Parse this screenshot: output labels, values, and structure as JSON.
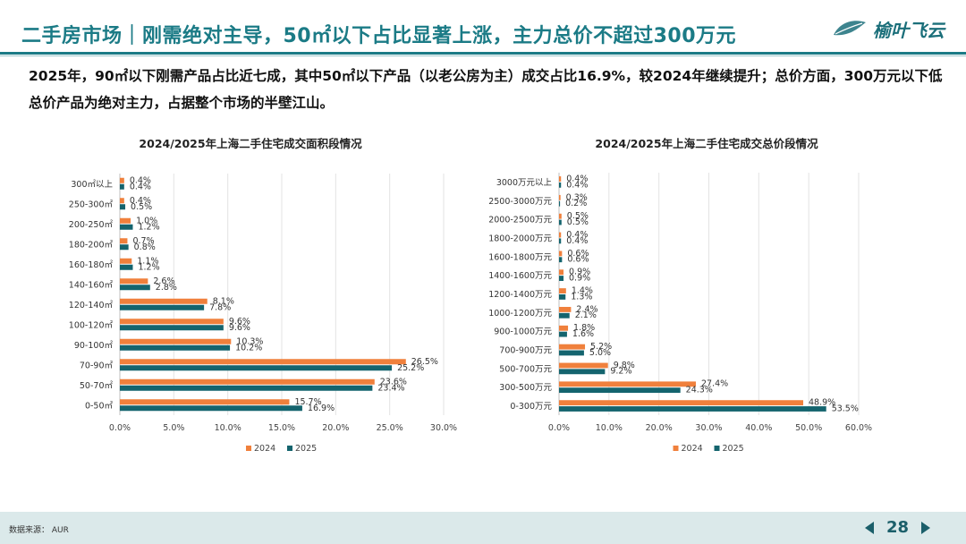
{
  "header": {
    "title": "二手房市场｜刚需绝对主导，50㎡以下占比显著上涨，主力总价不超过300万元",
    "logo_text": "榆叶飞云"
  },
  "subtitle": "2025年，90㎡以下刚需产品占比近七成，其中50㎡以下产品（以老公房为主）成交占比16.9%，较2024年继续提升；总价方面，300万元以下低总价产品为绝对主力，占据整个市场的半壁江山。",
  "colors": {
    "primary": "#1b7b86",
    "series_2024": "#f0803c",
    "series_2025": "#14646e"
  },
  "chart_data": [
    {
      "type": "bar",
      "orientation": "horizontal",
      "title": "2024/2025年上海二手住宅成交面积段情况",
      "categories": [
        "300㎡以上",
        "250-300㎡",
        "200-250㎡",
        "180-200㎡",
        "160-180㎡",
        "140-160㎡",
        "120-140㎡",
        "100-120㎡",
        "90-100㎡",
        "70-90㎡",
        "50-70㎡",
        "0-50㎡"
      ],
      "series": [
        {
          "name": "2024",
          "values": [
            0.4,
            0.4,
            1.0,
            0.7,
            1.1,
            2.6,
            8.1,
            9.6,
            10.3,
            26.5,
            23.6,
            15.7
          ]
        },
        {
          "name": "2025",
          "values": [
            0.4,
            0.5,
            1.2,
            0.8,
            1.2,
            2.8,
            7.8,
            9.6,
            10.2,
            25.2,
            23.4,
            16.9
          ]
        }
      ],
      "xlim": [
        0,
        30
      ],
      "xticks": [
        "0.0%",
        "5.0%",
        "10.0%",
        "15.0%",
        "20.0%",
        "25.0%",
        "30.0%"
      ],
      "legend": "bottom"
    },
    {
      "type": "bar",
      "orientation": "horizontal",
      "title": "2024/2025年上海二手住宅成交总价段情况",
      "categories": [
        "3000万元以上",
        "2500-3000万元",
        "2000-2500万元",
        "1800-2000万元",
        "1600-1800万元",
        "1400-1600万元",
        "1200-1400万元",
        "1000-1200万元",
        "900-1000万元",
        "700-900万元",
        "500-700万元",
        "300-500万元",
        "0-300万元"
      ],
      "series": [
        {
          "name": "2024",
          "values": [
            0.4,
            0.3,
            0.5,
            0.4,
            0.6,
            0.9,
            1.4,
            2.4,
            1.8,
            5.2,
            9.8,
            27.4,
            48.9
          ]
        },
        {
          "name": "2025",
          "values": [
            0.4,
            0.2,
            0.5,
            0.4,
            0.6,
            0.9,
            1.3,
            2.1,
            1.6,
            5.0,
            9.2,
            24.3,
            53.5
          ]
        }
      ],
      "xlim": [
        0,
        60
      ],
      "xticks": [
        "0.0%",
        "10.0%",
        "20.0%",
        "30.0%",
        "40.0%",
        "50.0%",
        "60.0%"
      ],
      "legend": "bottom"
    }
  ],
  "footer": {
    "source": "数据来源： AUR",
    "page_number": "28"
  }
}
